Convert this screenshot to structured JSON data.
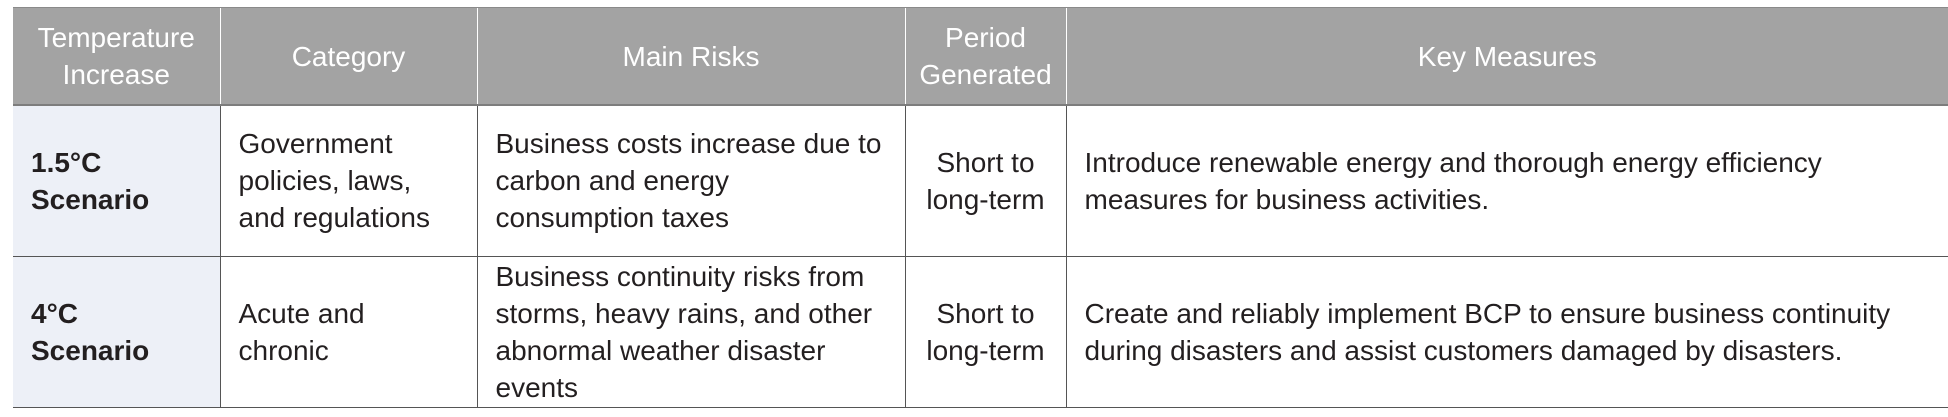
{
  "headers": [
    "Temperature Increase",
    "Category",
    "Main Risks",
    "Period Generated",
    "Key Measures"
  ],
  "rows": [
    {
      "scenario": "1.5°C Scenario",
      "category": "Government policies, laws, and regulations",
      "risks": "Business costs increase due to carbon and energy consumption taxes",
      "period": "Short to long-term",
      "measures": "Introduce renewable energy and thorough energy efficiency measures for business activities."
    },
    {
      "scenario": "4°C Scenario",
      "category": "Acute and chronic",
      "risks": "Business continuity risks from storms, heavy rains, and other abnormal weather disaster events",
      "period": "Short to long-term",
      "measures": "Create and reliably implement BCP to ensure business continuity during disasters and assist customers damaged by disasters."
    }
  ]
}
